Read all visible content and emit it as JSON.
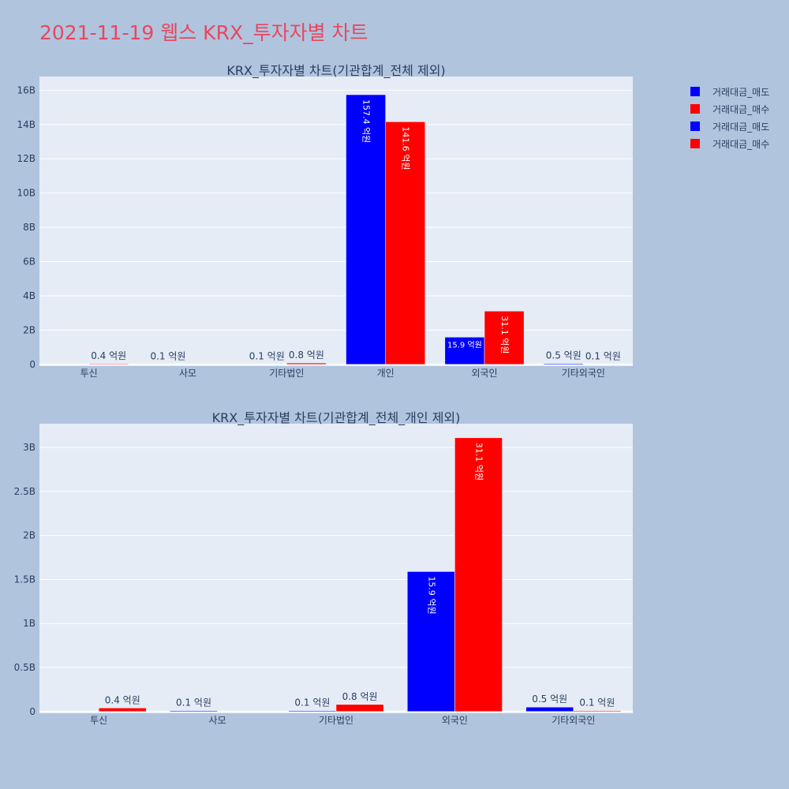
{
  "title": "2021-11-19 웹스 KRX_투자자별 차트",
  "legend": [
    {
      "label": "거래대금_매도",
      "color": "#0000ff"
    },
    {
      "label": "거래대금_매수",
      "color": "#ff0000"
    },
    {
      "label": "거래대금_매도",
      "color": "#0000ff"
    },
    {
      "label": "거래대금_매수",
      "color": "#ff0000"
    }
  ],
  "colors": {
    "sell": "#0000ff",
    "buy": "#ff0000",
    "plot_bg": "#e5ecf6",
    "page_bg": "#b0c4de",
    "title": "#e8475f"
  },
  "chart_data": [
    {
      "type": "bar",
      "title": "KRX_투자자별 차트(기관합계_전체 제외)",
      "categories": [
        "투신",
        "사모",
        "기타법인",
        "개인",
        "외국인",
        "기타외국인"
      ],
      "ylim": [
        -0.1,
        16.8
      ],
      "yticks": [
        0,
        2,
        4,
        6,
        8,
        10,
        12,
        14,
        16
      ],
      "ytick_labels": [
        "0",
        "2B",
        "4B",
        "6B",
        "8B",
        "10B",
        "12B",
        "14B",
        "16B"
      ],
      "grid": true,
      "series": [
        {
          "name": "거래대금_매도",
          "color": "#0000ff",
          "values": [
            0,
            0.01,
            0.01,
            15.74,
            1.59,
            0.05
          ],
          "labels": [
            "",
            "0.1 억원",
            "0.1 억원",
            "157.4 억원",
            "15.9 억원",
            "0.5 억원"
          ]
        },
        {
          "name": "거래대금_매수",
          "color": "#ff0000",
          "values": [
            0.04,
            0,
            0.08,
            14.16,
            3.11,
            0.01
          ],
          "labels": [
            "0.4 억원",
            "",
            "0.8 억원",
            "141.6 억원",
            "31.1 억원",
            "0.1 억원"
          ]
        }
      ]
    },
    {
      "type": "bar",
      "title": "KRX_투자자별 차트(기관합계_전체_개인 제외)",
      "categories": [
        "투신",
        "사모",
        "기타법인",
        "외국인",
        "기타외국인"
      ],
      "ylim": [
        -0.02,
        3.27
      ],
      "yticks": [
        0,
        0.5,
        1,
        1.5,
        2,
        2.5,
        3
      ],
      "ytick_labels": [
        "0",
        "0.5B",
        "1B",
        "1.5B",
        "2B",
        "2.5B",
        "3B"
      ],
      "grid": true,
      "series": [
        {
          "name": "거래대금_매도",
          "color": "#0000ff",
          "values": [
            0,
            0.01,
            0.01,
            1.59,
            0.05
          ],
          "labels": [
            "",
            "0.1 억원",
            "0.1 억원",
            "15.9 억원",
            "0.5 억원"
          ]
        },
        {
          "name": "거래대금_매수",
          "color": "#ff0000",
          "values": [
            0.04,
            0,
            0.08,
            3.11,
            0.01
          ],
          "labels": [
            "0.4 억원",
            "",
            "0.8 억원",
            "31.1 억원",
            "0.1 억원"
          ]
        }
      ]
    }
  ]
}
